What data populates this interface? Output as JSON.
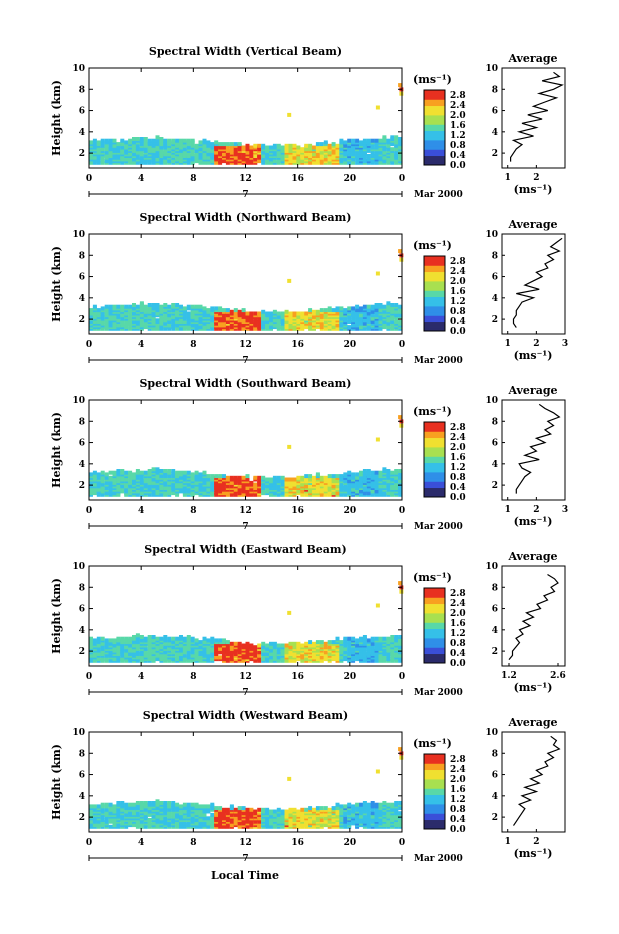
{
  "chart_data": {
    "type": "heatmap",
    "common": {
      "x_label": "Local Time",
      "x_ticks": [
        "0",
        "4",
        "8",
        "12",
        "16",
        "20",
        "0"
      ],
      "x_range_hours": [
        0,
        24
      ],
      "date_ticks": [
        "7"
      ],
      "date_label": "Mar 2000",
      "y_label": "Height (km)",
      "y_ticks": [
        "2",
        "4",
        "6",
        "8",
        "10"
      ],
      "y_range_km": [
        0.6,
        10
      ],
      "colorbar_unit": "(ms⁻¹)",
      "colorbar_ticks": [
        "0.0",
        "0.4",
        "0.8",
        "1.2",
        "1.6",
        "2.0",
        "2.4",
        "2.8"
      ],
      "colorbar_range": [
        0,
        3.0
      ],
      "colors": [
        "#2b2b6b",
        "#3a4fd8",
        "#2f8fe8",
        "#35c0e8",
        "#58d8a8",
        "#a8e050",
        "#f0e030",
        "#f8a020",
        "#e83020"
      ],
      "profile_title": "Average",
      "profile_unit": "(ms⁻¹)"
    },
    "panels": [
      {
        "title": "Spectral Width (Vertical Beam)",
        "profile_x_ticks": [
          "1",
          "2"
        ],
        "profile_x_range": [
          0.8,
          3.0
        ],
        "profile_heights_km": [
          1.2,
          1.6,
          2.0,
          2.4,
          2.8,
          3.2,
          3.6,
          4.0,
          4.4,
          4.8,
          5.2,
          5.6,
          6.0,
          6.4,
          6.8,
          7.2,
          7.6,
          8.0,
          8.4,
          8.8,
          9.2,
          9.6
        ],
        "profile_values": [
          1.1,
          1.1,
          1.2,
          1.3,
          1.5,
          1.2,
          1.9,
          1.4,
          2.0,
          1.5,
          2.2,
          1.7,
          2.4,
          1.9,
          2.3,
          2.7,
          2.1,
          2.6,
          2.9,
          2.2,
          2.8,
          2.6
        ]
      },
      {
        "title": "Spectral Width (Northward Beam)",
        "profile_x_ticks": [
          "1",
          "2",
          "3"
        ],
        "profile_x_range": [
          0.8,
          3.0
        ],
        "profile_heights_km": [
          1.2,
          1.6,
          2.0,
          2.4,
          2.8,
          3.2,
          3.6,
          4.0,
          4.4,
          4.8,
          5.2,
          5.6,
          6.0,
          6.4,
          6.8,
          7.2,
          7.6,
          8.0,
          8.4,
          8.8,
          9.2,
          9.6
        ],
        "profile_values": [
          1.3,
          1.2,
          1.2,
          1.3,
          1.3,
          1.4,
          1.5,
          1.9,
          1.3,
          2.1,
          1.6,
          1.9,
          2.2,
          2.0,
          2.4,
          2.3,
          2.6,
          2.4,
          2.8,
          2.5,
          2.7,
          2.9
        ]
      },
      {
        "title": "Spectral Width (Southward Beam)",
        "profile_x_ticks": [
          "1",
          "2",
          "3"
        ],
        "profile_x_range": [
          0.8,
          3.0
        ],
        "profile_heights_km": [
          1.2,
          1.6,
          2.0,
          2.4,
          2.8,
          3.2,
          3.6,
          4.0,
          4.4,
          4.8,
          5.2,
          5.6,
          6.0,
          6.4,
          6.8,
          7.2,
          7.6,
          8.0,
          8.4,
          8.8,
          9.2,
          9.6
        ],
        "profile_values": [
          1.3,
          1.3,
          1.4,
          1.5,
          1.6,
          1.8,
          1.5,
          1.4,
          2.1,
          1.6,
          2.0,
          1.8,
          2.3,
          2.0,
          2.5,
          2.3,
          2.6,
          2.4,
          2.8,
          2.6,
          2.3,
          2.1
        ]
      },
      {
        "title": "Spectral Width (Eastward Beam)",
        "profile_x_ticks": [
          "1.2",
          "2.6"
        ],
        "profile_x_range": [
          1.0,
          2.8
        ],
        "profile_heights_km": [
          1.2,
          1.6,
          2.0,
          2.4,
          2.8,
          3.2,
          3.6,
          4.0,
          4.4,
          4.8,
          5.2,
          5.6,
          6.0,
          6.4,
          6.8,
          7.2,
          7.6,
          8.0,
          8.4,
          8.8,
          9.2
        ],
        "profile_values": [
          1.2,
          1.3,
          1.3,
          1.4,
          1.5,
          1.4,
          1.6,
          1.5,
          1.8,
          1.6,
          1.9,
          1.7,
          2.1,
          2.0,
          2.3,
          2.2,
          2.5,
          2.4,
          2.6,
          2.5,
          2.3
        ]
      },
      {
        "title": "Spectral Width (Westward Beam)",
        "profile_x_ticks": [
          "1",
          "2"
        ],
        "profile_x_range": [
          0.8,
          3.0
        ],
        "profile_heights_km": [
          1.2,
          1.6,
          2.0,
          2.4,
          2.8,
          3.2,
          3.6,
          4.0,
          4.4,
          4.8,
          5.2,
          5.6,
          6.0,
          6.4,
          6.8,
          7.2,
          7.6,
          8.0,
          8.4,
          8.8,
          9.2,
          9.6
        ],
        "profile_values": [
          1.2,
          1.3,
          1.4,
          1.5,
          1.6,
          1.4,
          1.8,
          1.5,
          2.0,
          1.6,
          2.1,
          1.8,
          2.2,
          2.0,
          2.4,
          2.3,
          2.6,
          2.4,
          2.8,
          2.6,
          2.7,
          2.5
        ]
      }
    ]
  }
}
